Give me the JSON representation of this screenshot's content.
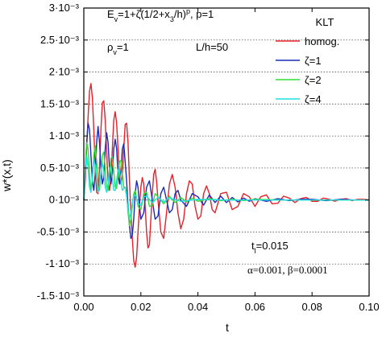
{
  "chart_data": {
    "type": "line",
    "xlabel": "t",
    "ylabel": "w*(x,t)",
    "xlim": [
      0,
      0.1
    ],
    "ylim": [
      -0.0015,
      0.003
    ],
    "grid": "horizontal-dotted",
    "xticks": [
      0,
      0.02,
      0.04,
      0.06,
      0.08,
      0.1
    ],
    "xtick_labels": [
      "0.00",
      "0.02",
      "0.04",
      "0.06",
      "0.08",
      "0.10"
    ],
    "yticks": [
      -0.0015,
      -0.001,
      -0.0005,
      0,
      0.0005,
      0.001,
      0.0015,
      0.002,
      0.0025,
      0.003
    ],
    "ytick_labels": [
      "-1.5·10⁻³",
      "-1·10⁻³",
      "-0.5·10⁻³",
      "0·10⁻³",
      "0.5·10⁻³",
      "1·10⁻³",
      "1.5·10⁻³",
      "2·10⁻³",
      "2.5·10⁻³",
      "3·10⁻³"
    ],
    "legend": {
      "title": "KLT",
      "position": "top-right",
      "entries": [
        {
          "label": "homog.",
          "color": "#e8202a"
        },
        {
          "label": "ζ=1",
          "color": "#1a2bb8"
        },
        {
          "label": "ζ=2",
          "color": "#33dd33"
        },
        {
          "label": "ζ=4",
          "color": "#22dddd"
        }
      ]
    },
    "annotations": {
      "formula": "Ev=1+ζ(1/2+x3/h)p, p=1",
      "rho": "ρv=1",
      "ratio": "L/h=50",
      "tl": "tl=0.015",
      "damping": "α=0.001, β=0.0001"
    },
    "series": [
      {
        "name": "homog.",
        "color": "#e8202a",
        "x": [
          0,
          0.0005,
          0.001,
          0.0015,
          0.002,
          0.0025,
          0.003,
          0.0035,
          0.004,
          0.0045,
          0.005,
          0.0055,
          0.006,
          0.0065,
          0.007,
          0.0075,
          0.008,
          0.0085,
          0.009,
          0.0095,
          0.01,
          0.0105,
          0.011,
          0.0115,
          0.012,
          0.0125,
          0.013,
          0.0135,
          0.014,
          0.0145,
          0.015,
          0.0155,
          0.016,
          0.0165,
          0.017,
          0.0175,
          0.018,
          0.0185,
          0.019,
          0.0195,
          0.02,
          0.0205,
          0.021,
          0.0215,
          0.022,
          0.0225,
          0.023,
          0.0235,
          0.024,
          0.0245,
          0.025,
          0.0255,
          0.026,
          0.027,
          0.028,
          0.029,
          0.03,
          0.031,
          0.032,
          0.033,
          0.034,
          0.035,
          0.036,
          0.037,
          0.038,
          0.039,
          0.04,
          0.041,
          0.042,
          0.043,
          0.044,
          0.045,
          0.046,
          0.048,
          0.05,
          0.052,
          0.054,
          0.056,
          0.058,
          0.06,
          0.062,
          0.064,
          0.066,
          0.068,
          0.07,
          0.072,
          0.074,
          0.076,
          0.078,
          0.08,
          0.082,
          0.084,
          0.086,
          0.088,
          0.09,
          0.092,
          0.094,
          0.096,
          0.098,
          0.1
        ],
        "y": [
          0,
          0.0003,
          0.0008,
          0.0013,
          0.0017,
          0.00182,
          0.0016,
          0.0011,
          0.0005,
          0.00012,
          0.0001,
          0.0005,
          0.0011,
          0.00152,
          0.00155,
          0.00125,
          0.00075,
          0.0003,
          0.00015,
          0.00035,
          0.0008,
          0.00125,
          0.00138,
          0.0012,
          0.0008,
          0.0004,
          0.00025,
          0.0004,
          0.0008,
          0.00118,
          0.0012,
          0.0009,
          0.0003,
          -0.0002,
          -0.0006,
          -0.00095,
          -0.00105,
          -0.0009,
          -0.0005,
          -0.0001,
          0.0002,
          0.00035,
          0.00025,
          -0.0001,
          -0.0005,
          -0.00075,
          -0.0007,
          -0.0003,
          0.0001,
          0.0004,
          0.00048,
          0.0003,
          0.0,
          -0.0005,
          -0.0006,
          -0.0002,
          0.00025,
          0.0004,
          0.0002,
          -0.0002,
          -0.00045,
          -0.0003,
          0.0001,
          0.0003,
          0.00025,
          -0.0001,
          -0.0003,
          -0.00025,
          0.0001,
          0.00022,
          0.0001,
          -0.00015,
          -0.0002,
          0.0001,
          0.00012,
          -0.00015,
          -0.0001,
          0.0001,
          5e-05,
          -0.0001,
          5e-05,
          8e-05,
          -6e-05,
          -5e-05,
          6e-05,
          3e-05,
          -4e-05,
          2e-05,
          4e-05,
          -2e-05,
          -2e-05,
          3e-05,
          1e-05,
          -2e-05,
          1e-05,
          2e-05,
          -1e-05,
          1e-05,
          1e-05,
          0.0
        ]
      },
      {
        "name": "ζ=1",
        "color": "#1a2bb8",
        "x": [
          0,
          0.0005,
          0.001,
          0.0015,
          0.002,
          0.0025,
          0.003,
          0.0035,
          0.004,
          0.0045,
          0.005,
          0.0055,
          0.006,
          0.0065,
          0.007,
          0.0075,
          0.008,
          0.0085,
          0.009,
          0.0095,
          0.01,
          0.0105,
          0.011,
          0.0115,
          0.012,
          0.0125,
          0.013,
          0.0135,
          0.014,
          0.0145,
          0.015,
          0.0155,
          0.016,
          0.0165,
          0.017,
          0.0175,
          0.018,
          0.0185,
          0.019,
          0.0195,
          0.02,
          0.021,
          0.022,
          0.023,
          0.024,
          0.025,
          0.026,
          0.027,
          0.028,
          0.029,
          0.03,
          0.031,
          0.032,
          0.033,
          0.034,
          0.036,
          0.038,
          0.04,
          0.042,
          0.044,
          0.046,
          0.048,
          0.05,
          0.052,
          0.054,
          0.056,
          0.058,
          0.06,
          0.064,
          0.068,
          0.072,
          0.076,
          0.08,
          0.085,
          0.09,
          0.095,
          0.1
        ],
        "y": [
          0,
          0.0004,
          0.0009,
          0.0012,
          0.0011,
          0.0007,
          0.0003,
          0.00015,
          0.0004,
          0.0009,
          0.00115,
          0.0009,
          0.0005,
          0.00025,
          0.00035,
          0.0008,
          0.00105,
          0.0009,
          0.0005,
          0.00025,
          0.0004,
          0.0008,
          0.00095,
          0.0008,
          0.0004,
          0.00025,
          0.00045,
          0.0008,
          0.00088,
          0.0006,
          0.0003,
          -0.0001,
          -0.0004,
          -0.0006,
          -0.00055,
          -0.0003,
          0.0001,
          0.0003,
          0.0002,
          -0.0001,
          -0.0003,
          -0.0002,
          0.0002,
          0.0003,
          0.0,
          -0.0003,
          -0.00025,
          0.0001,
          0.0002,
          0.0,
          -0.0002,
          -0.00015,
          0.0001,
          0.00015,
          0.0,
          -0.0001,
          0.0001,
          5e-05,
          -8e-05,
          8e-05,
          -4e-05,
          6e-05,
          -4e-05,
          4e-05,
          -3e-05,
          3e-05,
          -2e-05,
          2e-05,
          -2e-05,
          2e-05,
          -1e-05,
          1e-05,
          1e-05,
          -1e-05,
          1e-05,
          0.0,
          0.0
        ]
      },
      {
        "name": "ζ=2",
        "color": "#33dd33",
        "x": [
          0,
          0.0005,
          0.001,
          0.0015,
          0.002,
          0.0025,
          0.003,
          0.0035,
          0.004,
          0.0045,
          0.005,
          0.0055,
          0.006,
          0.0065,
          0.007,
          0.0075,
          0.008,
          0.0085,
          0.009,
          0.0095,
          0.01,
          0.0105,
          0.011,
          0.0115,
          0.012,
          0.0125,
          0.013,
          0.0135,
          0.014,
          0.0145,
          0.015,
          0.0155,
          0.016,
          0.0165,
          0.017,
          0.0175,
          0.018,
          0.019,
          0.02,
          0.021,
          0.022,
          0.023,
          0.024,
          0.025,
          0.026,
          0.028,
          0.03,
          0.032,
          0.034,
          0.036,
          0.038,
          0.04,
          0.044,
          0.048,
          0.052,
          0.056,
          0.06,
          0.07,
          0.08,
          0.09,
          0.1
        ],
        "y": [
          0,
          0.0005,
          0.0009,
          0.0008,
          0.0004,
          0.00015,
          0.0003,
          0.0007,
          0.00085,
          0.0006,
          0.0002,
          0.00015,
          0.0004,
          0.0007,
          0.00075,
          0.0005,
          0.0002,
          0.00015,
          0.0004,
          0.00065,
          0.00068,
          0.00045,
          0.0002,
          0.00018,
          0.0004,
          0.0006,
          0.00062,
          0.0004,
          0.0002,
          0.0002,
          0.0001,
          -0.0002,
          -0.0004,
          -0.0003,
          -0.0001,
          0.0001,
          0.00015,
          -0.0001,
          -0.00015,
          0.0001,
          0.00012,
          -0.0001,
          -8e-05,
          0.0001,
          5e-05,
          -6e-05,
          6e-05,
          -4e-05,
          4e-05,
          -3e-05,
          3e-05,
          -2e-05,
          2e-05,
          -1e-05,
          1e-05,
          -1e-05,
          1e-05,
          0.0,
          0.0,
          0.0,
          0.0
        ]
      },
      {
        "name": "ζ=4",
        "color": "#22dddd",
        "x": [
          0,
          0.0005,
          0.001,
          0.0015,
          0.002,
          0.0025,
          0.003,
          0.0035,
          0.004,
          0.0045,
          0.005,
          0.0055,
          0.006,
          0.0065,
          0.007,
          0.0075,
          0.008,
          0.0085,
          0.009,
          0.0095,
          0.01,
          0.0105,
          0.011,
          0.0115,
          0.012,
          0.0125,
          0.013,
          0.0135,
          0.014,
          0.0145,
          0.015,
          0.0155,
          0.016,
          0.0165,
          0.017,
          0.0175,
          0.018,
          0.019,
          0.02,
          0.021,
          0.022,
          0.024,
          0.026,
          0.028,
          0.03,
          0.034,
          0.04,
          0.05,
          0.06,
          0.08,
          0.1
        ],
        "y": [
          0,
          0.0005,
          0.0007,
          0.0005,
          0.0002,
          0.00012,
          0.00035,
          0.00062,
          0.00055,
          0.0003,
          0.00012,
          0.0002,
          0.00045,
          0.00058,
          0.00045,
          0.0002,
          0.00012,
          0.00025,
          0.0005,
          0.00052,
          0.00035,
          0.00015,
          0.00015,
          0.0003,
          0.00048,
          0.00045,
          0.0003,
          0.00015,
          0.00018,
          0.0002,
          5e-05,
          -0.00015,
          -0.00028,
          -0.0002,
          -5e-05,
          6e-05,
          8e-05,
          -6e-05,
          -8e-05,
          5e-05,
          6e-05,
          -4e-05,
          4e-05,
          -3e-05,
          3e-05,
          -2e-05,
          1e-05,
          0.0,
          0.0,
          0.0,
          0.0
        ]
      }
    ]
  }
}
